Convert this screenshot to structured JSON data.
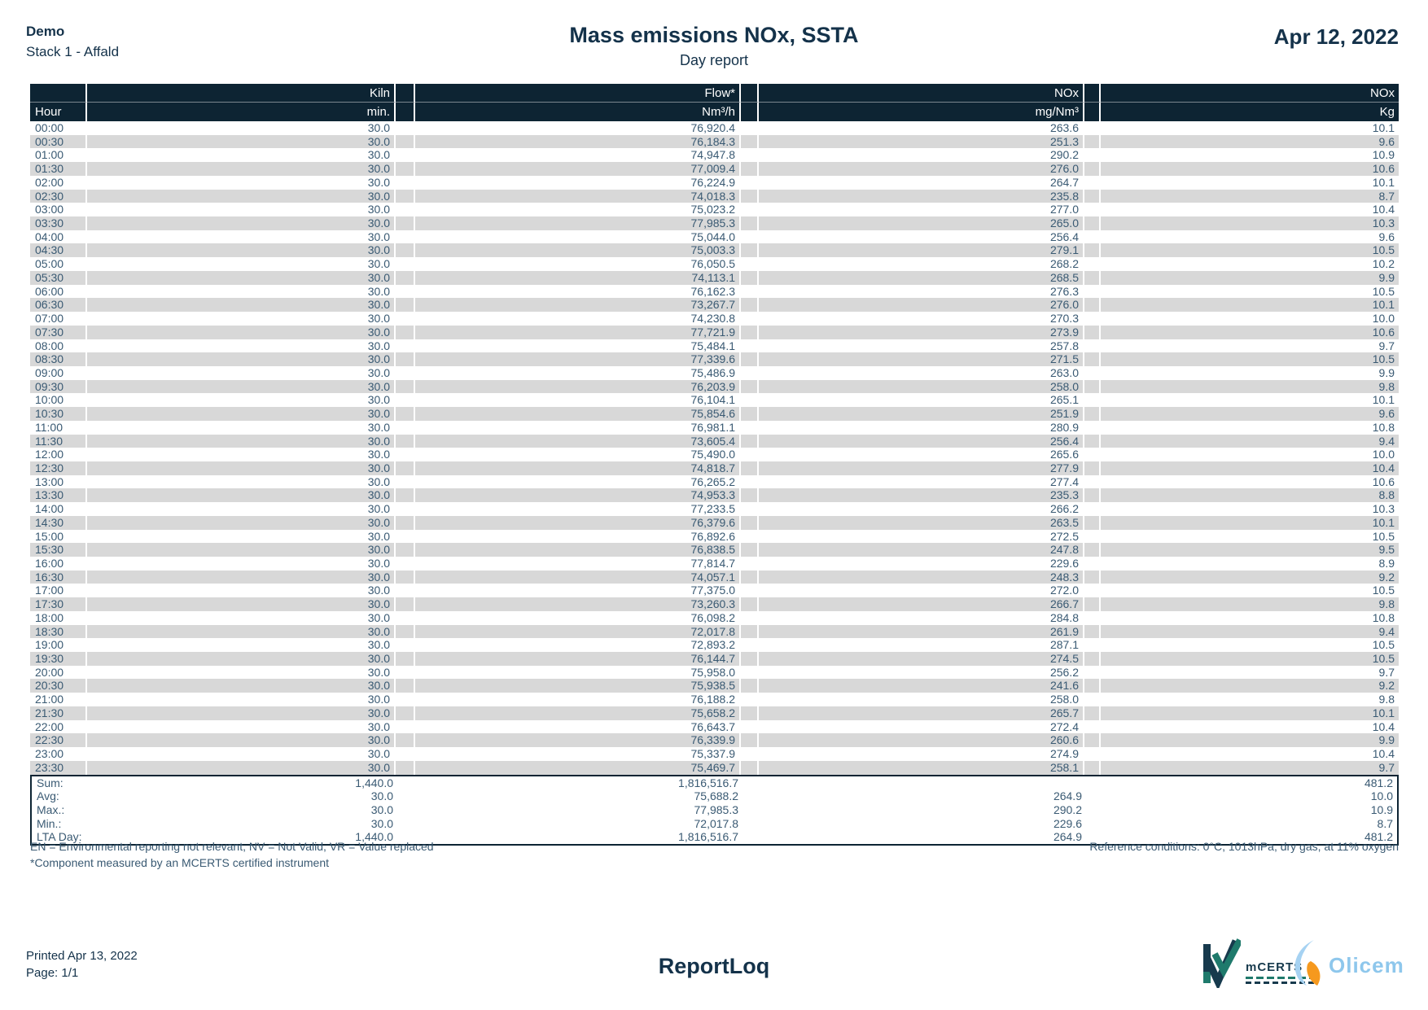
{
  "page": {
    "client": "Demo",
    "stack": "Stack 1 - Affald",
    "title": "Mass emissions NOx, SSTA",
    "subtitle": "Day report",
    "date": "Apr 12, 2022"
  },
  "table": {
    "header": {
      "hour": "Hour",
      "kiln_top": "Kiln",
      "kiln_unit": "min.",
      "flow_top": "Flow*",
      "flow_unit": "Nm³/h",
      "nox_conc_top": "NOx",
      "nox_conc_unit": "mg/Nm³",
      "nox_mass_top": "NOx",
      "nox_mass_unit": "Kg"
    },
    "rows": [
      {
        "hour": "00:00",
        "kiln": "30.0",
        "flow": "76,920.4",
        "nox_mg": "263.6",
        "nox_kg": "10.1"
      },
      {
        "hour": "00:30",
        "kiln": "30.0",
        "flow": "76,184.3",
        "nox_mg": "251.3",
        "nox_kg": "9.6"
      },
      {
        "hour": "01:00",
        "kiln": "30.0",
        "flow": "74,947.8",
        "nox_mg": "290.2",
        "nox_kg": "10.9"
      },
      {
        "hour": "01:30",
        "kiln": "30.0",
        "flow": "77,009.4",
        "nox_mg": "276.0",
        "nox_kg": "10.6"
      },
      {
        "hour": "02:00",
        "kiln": "30.0",
        "flow": "76,224.9",
        "nox_mg": "264.7",
        "nox_kg": "10.1"
      },
      {
        "hour": "02:30",
        "kiln": "30.0",
        "flow": "74,018.3",
        "nox_mg": "235.8",
        "nox_kg": "8.7"
      },
      {
        "hour": "03:00",
        "kiln": "30.0",
        "flow": "75,023.2",
        "nox_mg": "277.0",
        "nox_kg": "10.4"
      },
      {
        "hour": "03:30",
        "kiln": "30.0",
        "flow": "77,985.3",
        "nox_mg": "265.0",
        "nox_kg": "10.3"
      },
      {
        "hour": "04:00",
        "kiln": "30.0",
        "flow": "75,044.0",
        "nox_mg": "256.4",
        "nox_kg": "9.6"
      },
      {
        "hour": "04:30",
        "kiln": "30.0",
        "flow": "75,003.3",
        "nox_mg": "279.1",
        "nox_kg": "10.5"
      },
      {
        "hour": "05:00",
        "kiln": "30.0",
        "flow": "76,050.5",
        "nox_mg": "268.2",
        "nox_kg": "10.2"
      },
      {
        "hour": "05:30",
        "kiln": "30.0",
        "flow": "74,113.1",
        "nox_mg": "268.5",
        "nox_kg": "9.9"
      },
      {
        "hour": "06:00",
        "kiln": "30.0",
        "flow": "76,162.3",
        "nox_mg": "276.3",
        "nox_kg": "10.5"
      },
      {
        "hour": "06:30",
        "kiln": "30.0",
        "flow": "73,267.7",
        "nox_mg": "276.0",
        "nox_kg": "10.1"
      },
      {
        "hour": "07:00",
        "kiln": "30.0",
        "flow": "74,230.8",
        "nox_mg": "270.3",
        "nox_kg": "10.0"
      },
      {
        "hour": "07:30",
        "kiln": "30.0",
        "flow": "77,721.9",
        "nox_mg": "273.9",
        "nox_kg": "10.6"
      },
      {
        "hour": "08:00",
        "kiln": "30.0",
        "flow": "75,484.1",
        "nox_mg": "257.8",
        "nox_kg": "9.7"
      },
      {
        "hour": "08:30",
        "kiln": "30.0",
        "flow": "77,339.6",
        "nox_mg": "271.5",
        "nox_kg": "10.5"
      },
      {
        "hour": "09:00",
        "kiln": "30.0",
        "flow": "75,486.9",
        "nox_mg": "263.0",
        "nox_kg": "9.9"
      },
      {
        "hour": "09:30",
        "kiln": "30.0",
        "flow": "76,203.9",
        "nox_mg": "258.0",
        "nox_kg": "9.8"
      },
      {
        "hour": "10:00",
        "kiln": "30.0",
        "flow": "76,104.1",
        "nox_mg": "265.1",
        "nox_kg": "10.1"
      },
      {
        "hour": "10:30",
        "kiln": "30.0",
        "flow": "75,854.6",
        "nox_mg": "251.9",
        "nox_kg": "9.6"
      },
      {
        "hour": "11:00",
        "kiln": "30.0",
        "flow": "76,981.1",
        "nox_mg": "280.9",
        "nox_kg": "10.8"
      },
      {
        "hour": "11:30",
        "kiln": "30.0",
        "flow": "73,605.4",
        "nox_mg": "256.4",
        "nox_kg": "9.4"
      },
      {
        "hour": "12:00",
        "kiln": "30.0",
        "flow": "75,490.0",
        "nox_mg": "265.6",
        "nox_kg": "10.0"
      },
      {
        "hour": "12:30",
        "kiln": "30.0",
        "flow": "74,818.7",
        "nox_mg": "277.9",
        "nox_kg": "10.4"
      },
      {
        "hour": "13:00",
        "kiln": "30.0",
        "flow": "76,265.2",
        "nox_mg": "277.4",
        "nox_kg": "10.6"
      },
      {
        "hour": "13:30",
        "kiln": "30.0",
        "flow": "74,953.3",
        "nox_mg": "235.3",
        "nox_kg": "8.8"
      },
      {
        "hour": "14:00",
        "kiln": "30.0",
        "flow": "77,233.5",
        "nox_mg": "266.2",
        "nox_kg": "10.3"
      },
      {
        "hour": "14:30",
        "kiln": "30.0",
        "flow": "76,379.6",
        "nox_mg": "263.5",
        "nox_kg": "10.1"
      },
      {
        "hour": "15:00",
        "kiln": "30.0",
        "flow": "76,892.6",
        "nox_mg": "272.5",
        "nox_kg": "10.5"
      },
      {
        "hour": "15:30",
        "kiln": "30.0",
        "flow": "76,838.5",
        "nox_mg": "247.8",
        "nox_kg": "9.5"
      },
      {
        "hour": "16:00",
        "kiln": "30.0",
        "flow": "77,814.7",
        "nox_mg": "229.6",
        "nox_kg": "8.9"
      },
      {
        "hour": "16:30",
        "kiln": "30.0",
        "flow": "74,057.1",
        "nox_mg": "248.3",
        "nox_kg": "9.2"
      },
      {
        "hour": "17:00",
        "kiln": "30.0",
        "flow": "77,375.0",
        "nox_mg": "272.0",
        "nox_kg": "10.5"
      },
      {
        "hour": "17:30",
        "kiln": "30.0",
        "flow": "73,260.3",
        "nox_mg": "266.7",
        "nox_kg": "9.8"
      },
      {
        "hour": "18:00",
        "kiln": "30.0",
        "flow": "76,098.2",
        "nox_mg": "284.8",
        "nox_kg": "10.8"
      },
      {
        "hour": "18:30",
        "kiln": "30.0",
        "flow": "72,017.8",
        "nox_mg": "261.9",
        "nox_kg": "9.4"
      },
      {
        "hour": "19:00",
        "kiln": "30.0",
        "flow": "72,893.2",
        "nox_mg": "287.1",
        "nox_kg": "10.5"
      },
      {
        "hour": "19:30",
        "kiln": "30.0",
        "flow": "76,144.7",
        "nox_mg": "274.5",
        "nox_kg": "10.5"
      },
      {
        "hour": "20:00",
        "kiln": "30.0",
        "flow": "75,958.0",
        "nox_mg": "256.2",
        "nox_kg": "9.7"
      },
      {
        "hour": "20:30",
        "kiln": "30.0",
        "flow": "75,938.5",
        "nox_mg": "241.6",
        "nox_kg": "9.2"
      },
      {
        "hour": "21:00",
        "kiln": "30.0",
        "flow": "76,188.2",
        "nox_mg": "258.0",
        "nox_kg": "9.8"
      },
      {
        "hour": "21:30",
        "kiln": "30.0",
        "flow": "75,658.2",
        "nox_mg": "265.7",
        "nox_kg": "10.1"
      },
      {
        "hour": "22:00",
        "kiln": "30.0",
        "flow": "76,643.7",
        "nox_mg": "272.4",
        "nox_kg": "10.4"
      },
      {
        "hour": "22:30",
        "kiln": "30.0",
        "flow": "76,339.9",
        "nox_mg": "260.6",
        "nox_kg": "9.9"
      },
      {
        "hour": "23:00",
        "kiln": "30.0",
        "flow": "75,337.9",
        "nox_mg": "274.9",
        "nox_kg": "10.4"
      },
      {
        "hour": "23:30",
        "kiln": "30.0",
        "flow": "75,469.7",
        "nox_mg": "258.1",
        "nox_kg": "9.7"
      }
    ],
    "summary": [
      {
        "label": "Sum:",
        "kiln": "1,440.0",
        "flow": "1,816,516.7",
        "nox_mg": "",
        "nox_kg": "481.2"
      },
      {
        "label": "Avg:",
        "kiln": "30.0",
        "flow": "75,688.2",
        "nox_mg": "264.9",
        "nox_kg": "10.0"
      },
      {
        "label": "Max.:",
        "kiln": "30.0",
        "flow": "77,985.3",
        "nox_mg": "290.2",
        "nox_kg": "10.9"
      },
      {
        "label": "Min.:",
        "kiln": "30.0",
        "flow": "72,017.8",
        "nox_mg": "229.6",
        "nox_kg": "8.7"
      },
      {
        "label": "LTA Day:",
        "kiln": "1,440.0",
        "flow": "1,816,516.7",
        "nox_mg": "264.9",
        "nox_kg": "481.2"
      }
    ]
  },
  "footnotes": {
    "legend": "EN = Environmental reporting not relevant, NV = Not Valid, VR = Value replaced",
    "component_note": "*Component measured by an MCERTS certified instrument",
    "reference_conditions": "Reference conditions: 0°C, 1013hPa, dry gas, at 11% oxygen"
  },
  "footer": {
    "printed": "Printed Apr 13, 2022",
    "page": "Page: 1/1",
    "app_name": "ReportLoq"
  },
  "logos": {
    "mcerts_text": "mCERTS",
    "olicem_text": "Olicem"
  },
  "colors": {
    "header_bg": "#0d2433",
    "data_text": "#3a5a73",
    "heading_text": "#14324a",
    "stripe": "#d8d8d8",
    "mcerts_navy": "#173a4d",
    "mcerts_teal": "#1f7a6c",
    "olicem_blue": "#8ec7ec",
    "olicem_blue_light": "#a6d2f2",
    "olicem_orange": "#f6991e"
  }
}
